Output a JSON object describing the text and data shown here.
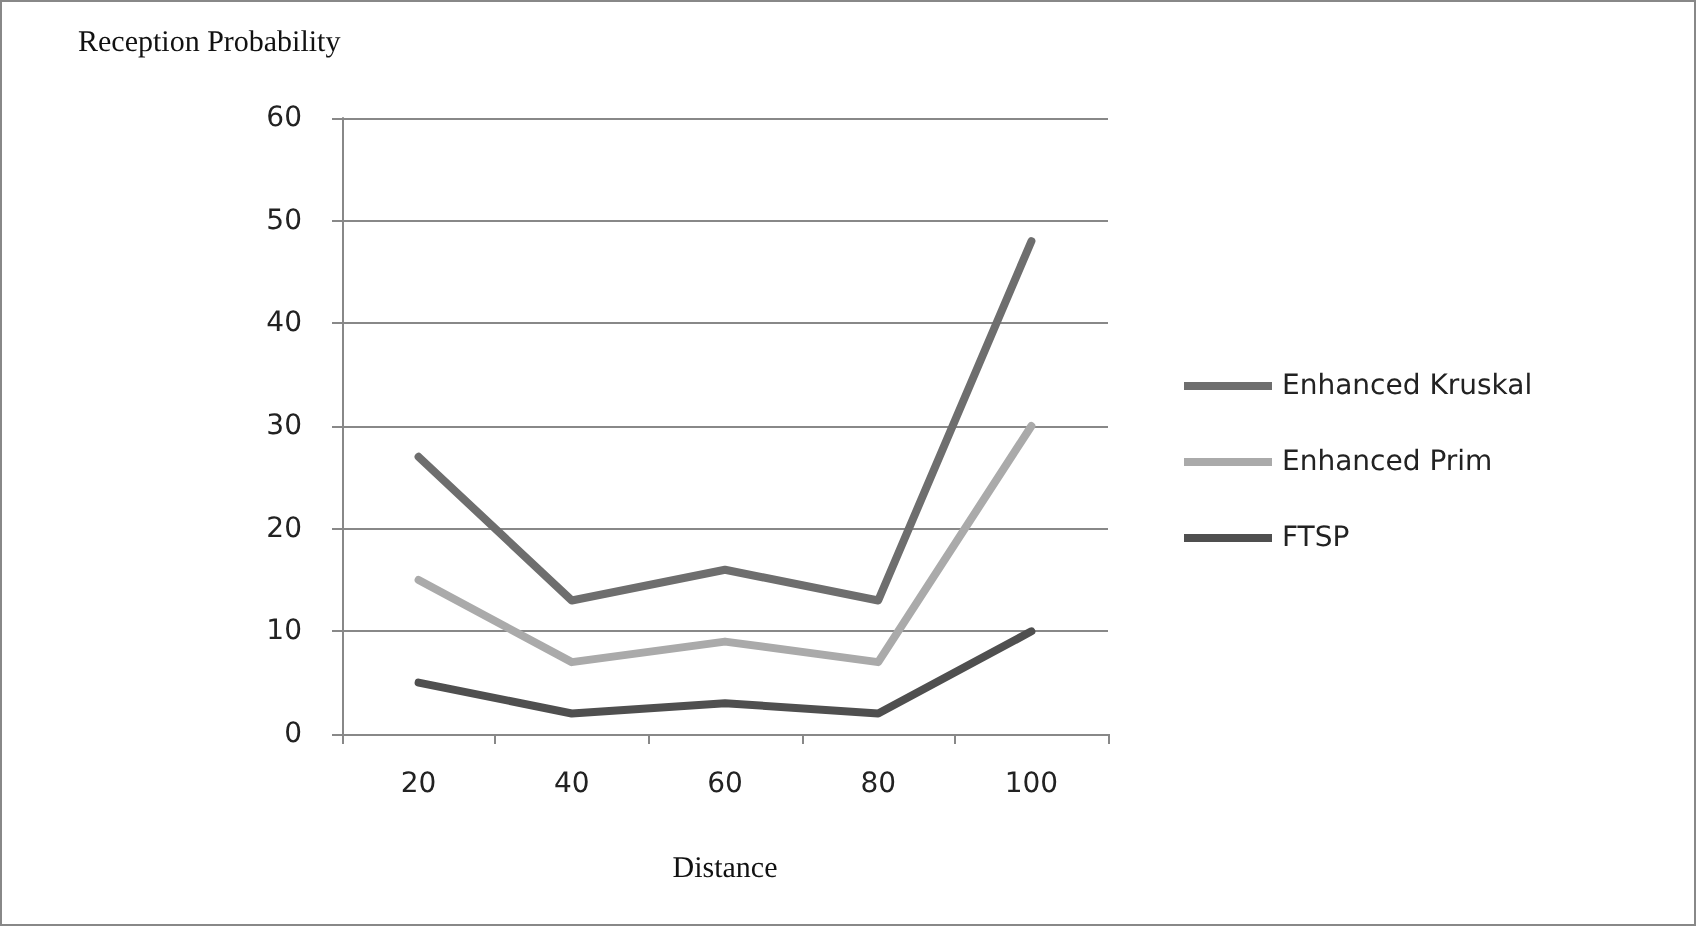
{
  "chart_data": {
    "type": "line",
    "xlabel": "Distance",
    "ylabel": "Reception Probability",
    "categories": [
      "20",
      "40",
      "60",
      "80",
      "100"
    ],
    "series": [
      {
        "name": "Enhanced Kruskal",
        "color": "#6e6e6e",
        "values": [
          27,
          13,
          16,
          13,
          48
        ]
      },
      {
        "name": "Enhanced Prim",
        "color": "#aaaaaa",
        "values": [
          15,
          7,
          9,
          7,
          30
        ]
      },
      {
        "name": "FTSP",
        "color": "#4f4f4f",
        "values": [
          5,
          2,
          3,
          2,
          10
        ]
      }
    ],
    "ylim": [
      0,
      60
    ],
    "yticks": [
      0,
      10,
      20,
      30,
      40,
      50,
      60
    ],
    "grid": "y",
    "legend": "right",
    "marker": "none",
    "line_style": "solid"
  }
}
